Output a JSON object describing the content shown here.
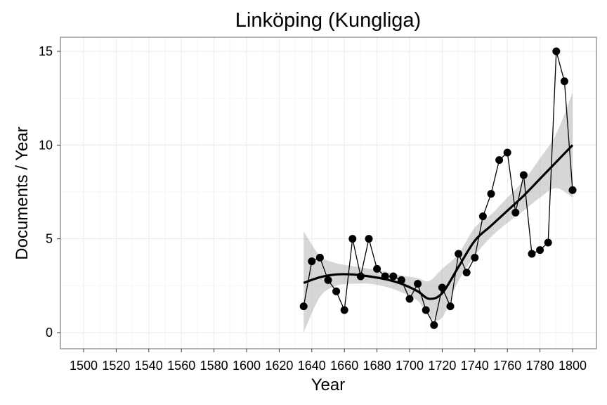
{
  "chart_data": {
    "type": "line",
    "title": "Linköping (Kungliga)",
    "xlabel": "Year",
    "ylabel": "Documents / Year",
    "xlim": [
      1500,
      1800
    ],
    "ylim": [
      0,
      15
    ],
    "x_ticks": [
      1500,
      1520,
      1540,
      1560,
      1580,
      1600,
      1620,
      1640,
      1660,
      1680,
      1700,
      1720,
      1740,
      1760,
      1780,
      1800
    ],
    "x_tick_labels": [
      "1500",
      "1520",
      "1540",
      "1560",
      "1580",
      "1600",
      "1620",
      "1640",
      "1660",
      "1680",
      "1700",
      "1720",
      "1740",
      "1760",
      "1780",
      "1800"
    ],
    "y_ticks": [
      0,
      5,
      10,
      15
    ],
    "y_tick_labels": [
      "0",
      "5",
      "10",
      "15"
    ],
    "grid": true,
    "legend": "none",
    "series": [
      {
        "type": "line+points",
        "color": "#000000",
        "x": [
          1635,
          1640,
          1645,
          1650,
          1655,
          1660,
          1665,
          1670,
          1675,
          1680,
          1685,
          1690,
          1695,
          1700,
          1705,
          1710,
          1715,
          1720,
          1725,
          1730,
          1735,
          1740,
          1745,
          1750,
          1755,
          1760,
          1765,
          1770,
          1775,
          1780,
          1785,
          1790,
          1795,
          1800
        ],
        "y": [
          1.4,
          3.8,
          4.0,
          2.8,
          2.2,
          1.2,
          5.0,
          3.0,
          5.0,
          3.4,
          3.0,
          3.0,
          2.8,
          1.8,
          2.6,
          1.2,
          0.4,
          2.4,
          1.4,
          4.2,
          3.2,
          4.0,
          6.2,
          7.4,
          9.2,
          9.6,
          6.4,
          8.4,
          4.2,
          4.4,
          4.8,
          15.0,
          13.4,
          7.6
        ]
      },
      {
        "type": "smooth",
        "color": "#000000",
        "band_color": "#999999",
        "x": [
          1635,
          1645,
          1655,
          1665,
          1675,
          1685,
          1695,
          1705,
          1712,
          1720,
          1730,
          1740,
          1750,
          1760,
          1770,
          1780,
          1790,
          1800
        ],
        "y": [
          2.65,
          2.95,
          3.1,
          3.1,
          3.0,
          2.85,
          2.6,
          2.2,
          1.8,
          2.1,
          3.5,
          4.9,
          5.7,
          6.5,
          7.3,
          8.2,
          9.1,
          10.0
        ],
        "lower": [
          0.0,
          1.9,
          2.5,
          2.6,
          2.6,
          2.45,
          2.15,
          1.7,
          0.85,
          0.8,
          2.75,
          4.1,
          5.1,
          5.85,
          6.5,
          7.2,
          7.7,
          7.2
        ],
        "upper": [
          5.4,
          4.1,
          3.7,
          3.55,
          3.4,
          3.25,
          3.05,
          2.9,
          2.75,
          3.4,
          4.2,
          5.6,
          6.3,
          7.2,
          8.1,
          9.3,
          10.6,
          12.8
        ]
      }
    ]
  }
}
